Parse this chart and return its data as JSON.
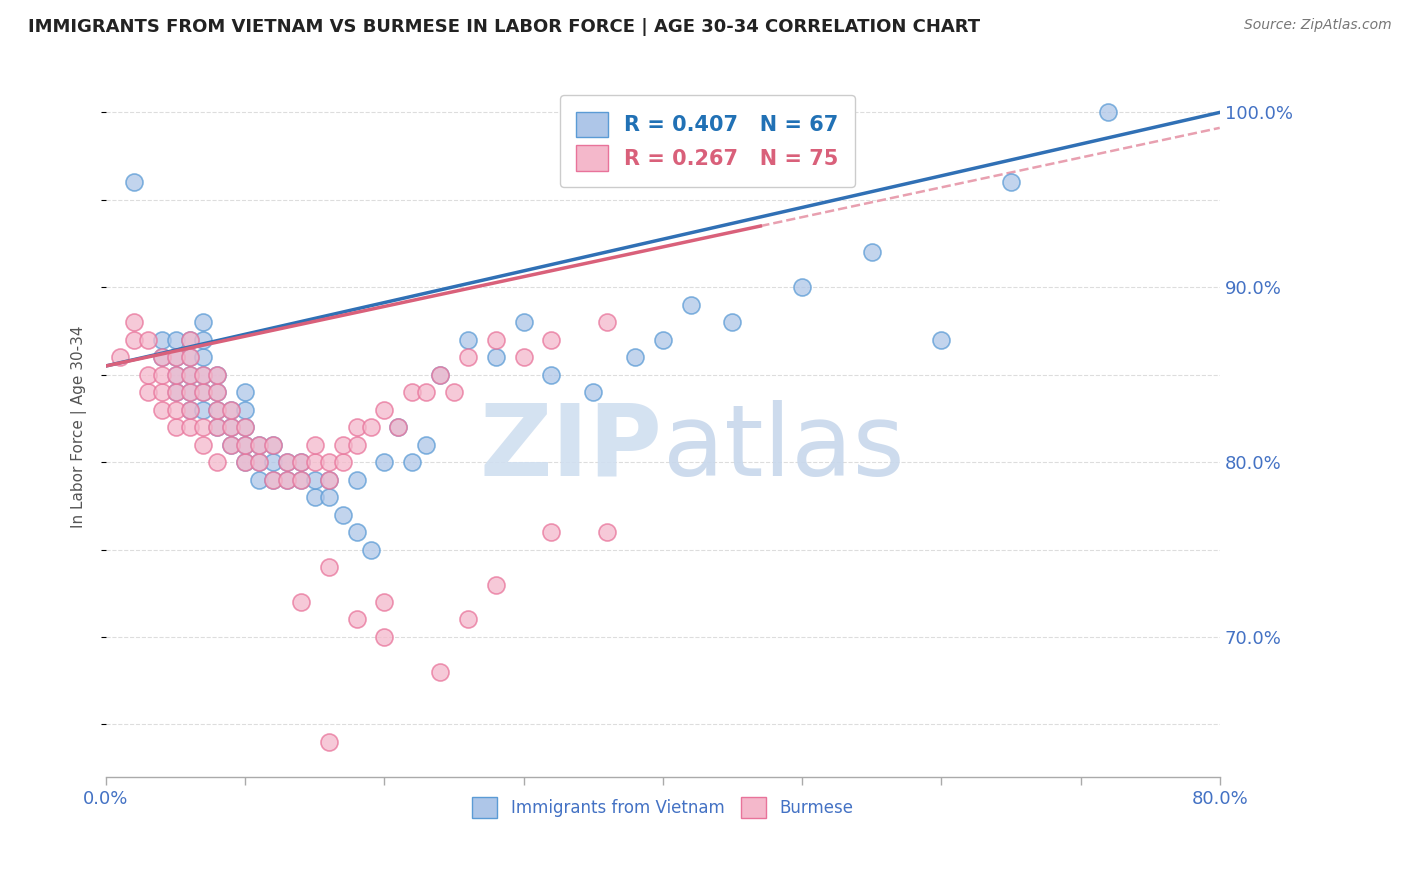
{
  "title": "IMMIGRANTS FROM VIETNAM VS BURMESE IN LABOR FORCE | AGE 30-34 CORRELATION CHART",
  "source": "Source: ZipAtlas.com",
  "ylabel": "In Labor Force | Age 30-34",
  "xlim": [
    0.0,
    0.8
  ],
  "ylim": [
    0.62,
    1.02
  ],
  "x_ticks": [
    0.0,
    0.1,
    0.2,
    0.3,
    0.4,
    0.5,
    0.6,
    0.7,
    0.8
  ],
  "y_tick_pos": [
    0.65,
    0.7,
    0.75,
    0.8,
    0.85,
    0.9,
    0.95,
    1.0
  ],
  "y_tick_labels": [
    "",
    "70.0%",
    "",
    "80.0%",
    "",
    "90.0%",
    "",
    "100.0%"
  ],
  "vietnam_color": "#aec6e8",
  "vietnam_edge": "#5b9bd5",
  "burmese_color": "#f4b8cb",
  "burmese_edge": "#e8739a",
  "trend_blue": "#3070b5",
  "trend_pink": "#d9607a",
  "trend_dash": "#e8a0b0",
  "R_vietnam": 0.407,
  "N_vietnam": 67,
  "R_burmese": 0.267,
  "N_burmese": 75,
  "watermark_zip": "ZIP",
  "watermark_atlas": "atlas",
  "vietnam_scatter_x": [
    0.02,
    0.04,
    0.04,
    0.05,
    0.05,
    0.05,
    0.05,
    0.06,
    0.06,
    0.06,
    0.06,
    0.06,
    0.07,
    0.07,
    0.07,
    0.07,
    0.07,
    0.07,
    0.08,
    0.08,
    0.08,
    0.08,
    0.09,
    0.09,
    0.09,
    0.1,
    0.1,
    0.1,
    0.1,
    0.1,
    0.11,
    0.11,
    0.11,
    0.12,
    0.12,
    0.12,
    0.13,
    0.13,
    0.14,
    0.14,
    0.15,
    0.15,
    0.16,
    0.16,
    0.17,
    0.18,
    0.18,
    0.19,
    0.2,
    0.21,
    0.22,
    0.23,
    0.24,
    0.26,
    0.28,
    0.3,
    0.32,
    0.35,
    0.38,
    0.4,
    0.42,
    0.45,
    0.5,
    0.55,
    0.6,
    0.65,
    0.72
  ],
  "vietnam_scatter_y": [
    0.96,
    0.86,
    0.87,
    0.84,
    0.85,
    0.86,
    0.87,
    0.83,
    0.84,
    0.85,
    0.86,
    0.87,
    0.83,
    0.84,
    0.85,
    0.86,
    0.87,
    0.88,
    0.82,
    0.83,
    0.84,
    0.85,
    0.81,
    0.82,
    0.83,
    0.8,
    0.81,
    0.82,
    0.83,
    0.84,
    0.79,
    0.8,
    0.81,
    0.79,
    0.8,
    0.81,
    0.79,
    0.8,
    0.79,
    0.8,
    0.78,
    0.79,
    0.78,
    0.79,
    0.77,
    0.76,
    0.79,
    0.75,
    0.8,
    0.82,
    0.8,
    0.81,
    0.85,
    0.87,
    0.86,
    0.88,
    0.85,
    0.84,
    0.86,
    0.87,
    0.89,
    0.88,
    0.9,
    0.92,
    0.87,
    0.96,
    1.0
  ],
  "burmese_scatter_x": [
    0.01,
    0.02,
    0.02,
    0.03,
    0.03,
    0.03,
    0.04,
    0.04,
    0.04,
    0.04,
    0.05,
    0.05,
    0.05,
    0.05,
    0.05,
    0.06,
    0.06,
    0.06,
    0.06,
    0.06,
    0.06,
    0.07,
    0.07,
    0.07,
    0.07,
    0.08,
    0.08,
    0.08,
    0.08,
    0.08,
    0.09,
    0.09,
    0.09,
    0.1,
    0.1,
    0.1,
    0.11,
    0.11,
    0.12,
    0.12,
    0.13,
    0.13,
    0.14,
    0.14,
    0.15,
    0.15,
    0.16,
    0.16,
    0.17,
    0.17,
    0.18,
    0.18,
    0.19,
    0.2,
    0.21,
    0.22,
    0.23,
    0.24,
    0.25,
    0.26,
    0.28,
    0.3,
    0.32,
    0.36,
    0.14,
    0.16,
    0.18,
    0.2,
    0.24,
    0.26,
    0.28,
    0.32,
    0.36,
    0.16,
    0.2
  ],
  "burmese_scatter_y": [
    0.86,
    0.87,
    0.88,
    0.84,
    0.85,
    0.87,
    0.83,
    0.84,
    0.85,
    0.86,
    0.82,
    0.83,
    0.84,
    0.85,
    0.86,
    0.82,
    0.83,
    0.84,
    0.85,
    0.86,
    0.87,
    0.81,
    0.82,
    0.84,
    0.85,
    0.8,
    0.82,
    0.83,
    0.84,
    0.85,
    0.81,
    0.82,
    0.83,
    0.8,
    0.81,
    0.82,
    0.8,
    0.81,
    0.79,
    0.81,
    0.79,
    0.8,
    0.79,
    0.8,
    0.8,
    0.81,
    0.79,
    0.8,
    0.8,
    0.81,
    0.81,
    0.82,
    0.82,
    0.83,
    0.82,
    0.84,
    0.84,
    0.85,
    0.84,
    0.86,
    0.87,
    0.86,
    0.87,
    0.88,
    0.72,
    0.74,
    0.71,
    0.7,
    0.68,
    0.71,
    0.73,
    0.76,
    0.76,
    0.64,
    0.72
  ]
}
